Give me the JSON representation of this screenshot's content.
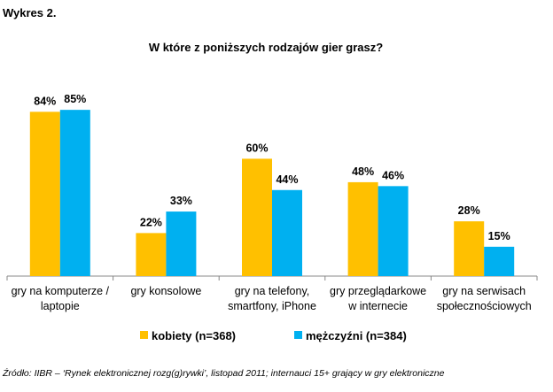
{
  "chart_data": {
    "type": "bar",
    "label": "Wykres 2.",
    "title": "W które z poniższych rodzajów gier grasz?",
    "categories": [
      [
        "gry na komputerze /",
        "laptopie"
      ],
      [
        "gry konsolowe"
      ],
      [
        "gry na telefony,",
        "smartfony, iPhone"
      ],
      [
        "gry przeglądarkowe",
        "w internecie"
      ],
      [
        "gry na serwisach",
        "społecznościowych"
      ]
    ],
    "series": [
      {
        "name": "kobiety (n=368)",
        "color": "#FFC000",
        "values": [
          84,
          22,
          60,
          48,
          28
        ],
        "labels": [
          "84%",
          "22%",
          "60%",
          "48%",
          "28%"
        ]
      },
      {
        "name": "mężczyźni (n=384)",
        "color": "#00B0F0",
        "values": [
          85,
          33,
          44,
          46,
          15
        ],
        "labels": [
          "85%",
          "33%",
          "44%",
          "46%",
          "15%"
        ]
      }
    ],
    "ylim": [
      0,
      100
    ],
    "legend": "bottom",
    "grid": false
  },
  "source": "Źródło: IIBR – ‘Rynek elektronicznej rozg(g)rywki’, listopad 2011; internauci 15+ grający w gry elektroniczne"
}
